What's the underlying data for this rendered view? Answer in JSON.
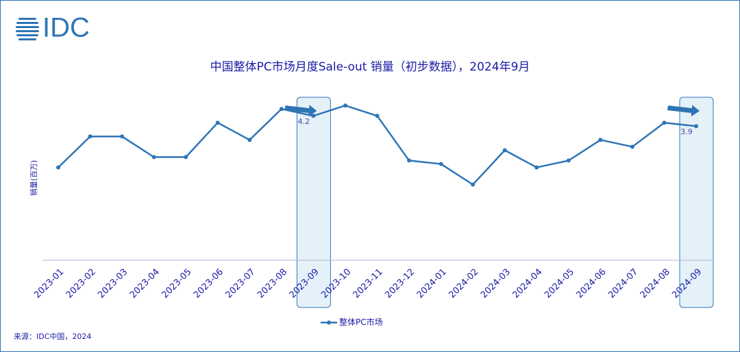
{
  "logo": "IDC",
  "source": "来源：IDC中国，2024",
  "chart_data": {
    "type": "line",
    "title": "中国整体PC市场月度Sale-out 销量（初步数据），2024年9月",
    "y_label": "销量(百万)",
    "categories": [
      "2023-01",
      "2023-02",
      "2023-03",
      "2023-04",
      "2023-05",
      "2023-06",
      "2023-07",
      "2023-08",
      "2023-09",
      "2023-10",
      "2023-11",
      "2023-12",
      "2024-01",
      "2024-02",
      "2024-03",
      "2024-04",
      "2024-05",
      "2024-06",
      "2024-07",
      "2024-08",
      "2024-09"
    ],
    "series": [
      {
        "name": "整体PC市场",
        "color": "#2e75b6",
        "values": [
          2.7,
          3.6,
          3.6,
          3.0,
          3.0,
          4.0,
          3.5,
          4.4,
          4.2,
          4.5,
          4.2,
          2.9,
          2.8,
          2.2,
          3.2,
          2.7,
          2.9,
          3.5,
          3.3,
          4.0,
          3.9
        ],
        "value_labels": [
          null,
          null,
          null,
          null,
          null,
          null,
          null,
          null,
          "4.2",
          null,
          null,
          null,
          null,
          null,
          null,
          null,
          null,
          null,
          null,
          null,
          "3.9"
        ]
      }
    ],
    "ylim": [
      0,
      5
    ],
    "legend": "bottom"
  }
}
